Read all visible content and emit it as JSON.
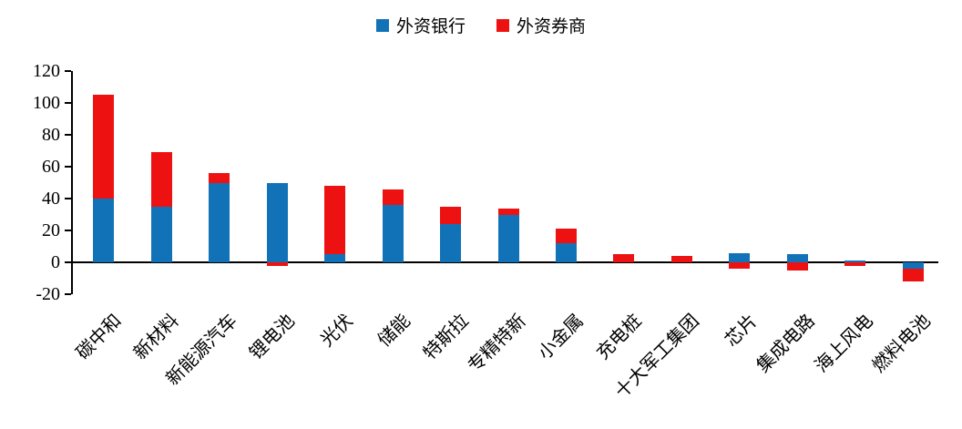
{
  "chart_data": {
    "type": "bar",
    "stacked": true,
    "title": "",
    "xlabel": "",
    "ylabel": "",
    "grid": false,
    "legend_position": "top",
    "ylim": [
      -20,
      120
    ],
    "yticks": [
      -20,
      0,
      20,
      40,
      60,
      80,
      100,
      120
    ],
    "categories": [
      "碳中和",
      "新材料",
      "新能源汽车",
      "锂电池",
      "光伏",
      "储能",
      "特斯拉",
      "专精特新",
      "小金属",
      "充电桩",
      "十大军工集团",
      "芯片",
      "集成电路",
      "海上风电",
      "燃料电池"
    ],
    "series": [
      {
        "name": "外资银行",
        "color": "#1272B8",
        "values": [
          40,
          35,
          50,
          50,
          5,
          36,
          24,
          30,
          12,
          0,
          0,
          6,
          5,
          1,
          -4
        ]
      },
      {
        "name": "外资券商",
        "color": "#EE1111",
        "values": [
          65,
          34,
          6,
          -2,
          43,
          10,
          11,
          4,
          9,
          5,
          4,
          -4,
          -5,
          -2,
          -8
        ]
      }
    ]
  }
}
